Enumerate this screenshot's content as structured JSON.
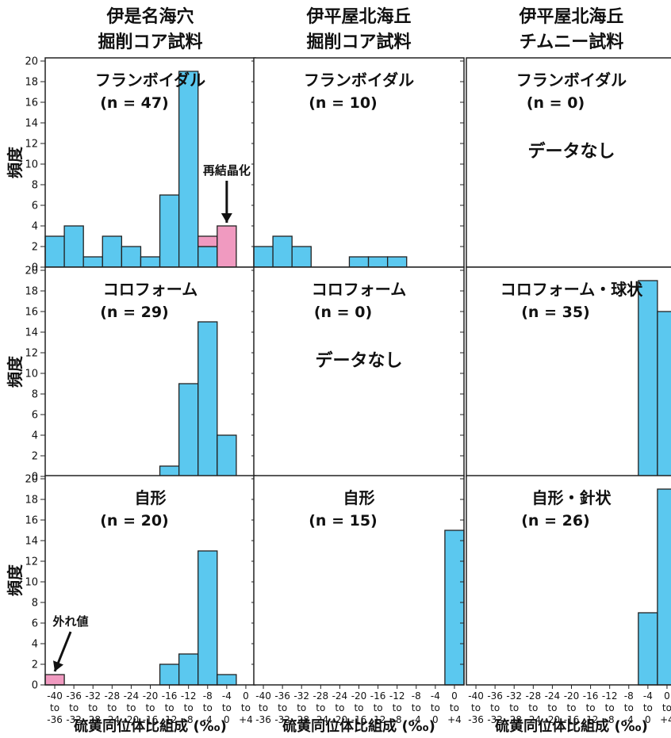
{
  "figure": {
    "column_titles": [
      [
        "伊是名海穴",
        "掘削コア試料"
      ],
      [
        "伊平屋北海丘",
        "掘削コア試料"
      ],
      [
        "伊平屋北海丘",
        "チムニー試料"
      ]
    ],
    "ylabel": "頻度",
    "xlabel": "硫黄同位体比組成 (‰)",
    "no_data_text": "データなし",
    "colors": {
      "blue": "#5bc8ef",
      "pink": "#f09ac0",
      "frame": "#222222"
    }
  },
  "chart_data": {
    "type": "bar",
    "bins": [
      [
        "-40",
        "to",
        "-36"
      ],
      [
        "-36",
        "to",
        "-32"
      ],
      [
        "-32",
        "to",
        "-28"
      ],
      [
        "-28",
        "to",
        "-24"
      ],
      [
        "-24",
        "to",
        "-20"
      ],
      [
        "-20",
        "to",
        "-16"
      ],
      [
        "-16",
        "to",
        "-12"
      ],
      [
        "-12",
        "to",
        "-8"
      ],
      [
        "-8",
        "to",
        "-4"
      ],
      [
        "-4",
        "to",
        "0"
      ],
      [
        "0",
        "to",
        "+4"
      ]
    ],
    "ylim": [
      0,
      20
    ],
    "yticks": [
      0,
      2,
      4,
      6,
      8,
      10,
      12,
      14,
      16,
      18,
      20
    ],
    "panels": [
      {
        "row": 0,
        "col": 0,
        "label": "フランボイダル",
        "n": "(n = 47)",
        "series": [
          {
            "color": "blue",
            "values": [
              3,
              4,
              1,
              3,
              2,
              1,
              7,
              19,
              2,
              0,
              0
            ]
          },
          {
            "color": "pink",
            "values": [
              0,
              0,
              0,
              0,
              0,
              0,
              0,
              0,
              1,
              4,
              0
            ]
          }
        ],
        "annotation": {
          "text": "再結晶化",
          "bin": 9
        }
      },
      {
        "row": 0,
        "col": 1,
        "label": "フランボイダル",
        "n": "(n = 10)",
        "series": [
          {
            "color": "blue",
            "values": [
              2,
              3,
              2,
              0,
              0,
              1,
              1,
              1,
              0,
              0,
              0
            ]
          }
        ]
      },
      {
        "row": 0,
        "col": 2,
        "label": "フランボイダル",
        "n": "(n = 0)",
        "no_data": true,
        "series": []
      },
      {
        "row": 1,
        "col": 0,
        "label": "コロフォーム",
        "n": "(n = 29)",
        "series": [
          {
            "color": "blue",
            "values": [
              0,
              0,
              0,
              0,
              0,
              0,
              1,
              9,
              15,
              4,
              0
            ]
          }
        ]
      },
      {
        "row": 1,
        "col": 1,
        "label": "コロフォーム",
        "n": "(n = 0)",
        "no_data": true,
        "series": []
      },
      {
        "row": 1,
        "col": 2,
        "label": "コロフォーム・球状",
        "n": "(n = 35)",
        "series": [
          {
            "color": "blue",
            "values": [
              0,
              0,
              0,
              0,
              0,
              0,
              0,
              0,
              0,
              19,
              16
            ]
          }
        ]
      },
      {
        "row": 2,
        "col": 0,
        "label": "自形",
        "n": "(n = 20)",
        "series": [
          {
            "color": "blue",
            "values": [
              0,
              0,
              0,
              0,
              0,
              0,
              2,
              3,
              13,
              1,
              0
            ]
          },
          {
            "color": "pink",
            "values": [
              1,
              0,
              0,
              0,
              0,
              0,
              0,
              0,
              0,
              0,
              0
            ]
          }
        ],
        "annotation": {
          "text": "外れ値",
          "bin": 0
        }
      },
      {
        "row": 2,
        "col": 1,
        "label": "自形",
        "n": "(n = 15)",
        "series": [
          {
            "color": "blue",
            "values": [
              0,
              0,
              0,
              0,
              0,
              0,
              0,
              0,
              0,
              0,
              15
            ]
          }
        ]
      },
      {
        "row": 2,
        "col": 2,
        "label": "自形・針状",
        "n": "(n = 26)",
        "series": [
          {
            "color": "blue",
            "values": [
              0,
              0,
              0,
              0,
              0,
              0,
              0,
              0,
              0,
              7,
              19
            ]
          }
        ]
      }
    ]
  }
}
